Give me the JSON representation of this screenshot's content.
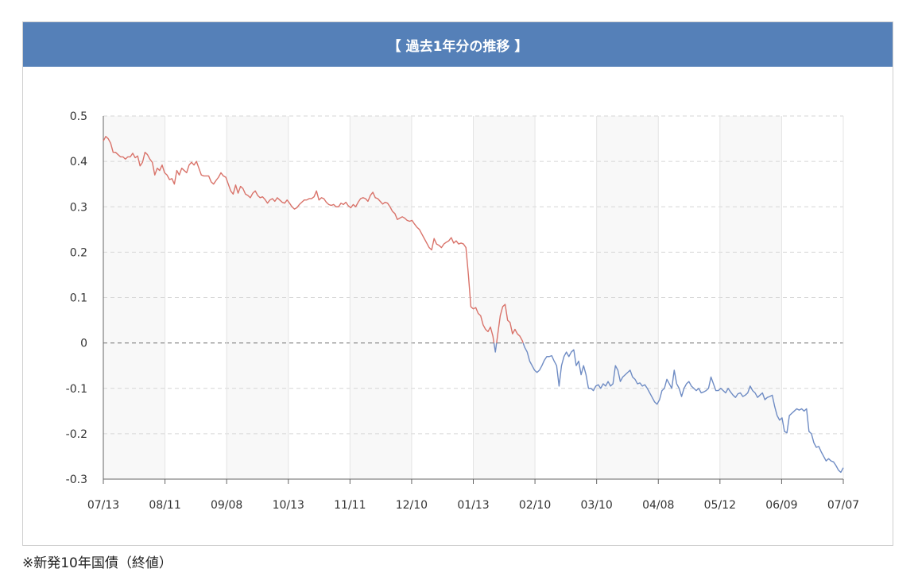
{
  "chart_title": "【 過去1年分の推移 】",
  "footnote": "※新発10年国債（終値）",
  "colors": {
    "header": "#5580b8",
    "positive": "#d9736a",
    "negative": "#6f8cc4",
    "band": "#f8f8f8"
  },
  "chart_data": {
    "type": "line",
    "title": "【 過去1年分の推移 】",
    "xlabel": "",
    "ylabel": "",
    "ylim": [
      -0.3,
      0.5
    ],
    "y_ticks": [
      "0.5",
      "0.4",
      "0.3",
      "0.2",
      "0.1",
      "0",
      "-0.1",
      "-0.2",
      "-0.3"
    ],
    "x_tick_labels": [
      "07/13",
      "08/11",
      "09/08",
      "10/13",
      "11/11",
      "12/10",
      "01/13",
      "02/10",
      "03/10",
      "04/08",
      "05/12",
      "06/09",
      "07/07"
    ],
    "grid": true,
    "zero_line": "dashed",
    "series": [
      {
        "values": [
          0.445,
          0.455,
          0.45,
          0.44,
          0.42,
          0.42,
          0.415,
          0.41,
          0.41,
          0.405,
          0.41,
          0.41,
          0.418,
          0.408,
          0.412,
          0.39,
          0.398,
          0.42,
          0.415,
          0.405,
          0.398,
          0.37,
          0.385,
          0.38,
          0.392,
          0.375,
          0.37,
          0.36,
          0.362,
          0.35,
          0.38,
          0.37,
          0.385,
          0.38,
          0.375,
          0.392,
          0.398,
          0.392,
          0.4,
          0.385,
          0.37,
          0.368,
          0.368,
          0.368,
          0.355,
          0.35,
          0.358,
          0.365,
          0.375,
          0.368,
          0.365,
          0.35,
          0.335,
          0.328,
          0.348,
          0.33,
          0.345,
          0.34,
          0.328,
          0.325,
          0.32,
          0.33,
          0.335,
          0.325,
          0.32,
          0.322,
          0.316,
          0.308,
          0.315,
          0.318,
          0.312,
          0.32,
          0.315,
          0.31,
          0.308,
          0.315,
          0.308,
          0.3,
          0.295,
          0.298,
          0.305,
          0.31,
          0.315,
          0.315,
          0.318,
          0.318,
          0.322,
          0.335,
          0.315,
          0.32,
          0.318,
          0.31,
          0.305,
          0.303,
          0.305,
          0.3,
          0.3,
          0.308,
          0.305,
          0.31,
          0.302,
          0.298,
          0.305,
          0.3,
          0.31,
          0.318,
          0.32,
          0.318,
          0.312,
          0.325,
          0.332,
          0.32,
          0.318,
          0.312,
          0.306,
          0.31,
          0.308,
          0.3,
          0.29,
          0.285,
          0.272,
          0.275,
          0.278,
          0.275,
          0.27,
          0.268,
          0.27,
          0.262,
          0.255,
          0.25,
          0.24,
          0.23,
          0.22,
          0.21,
          0.205,
          0.23,
          0.218,
          0.215,
          0.21,
          0.218,
          0.222,
          0.225,
          0.232,
          0.22,
          0.225,
          0.218,
          0.22,
          0.218,
          0.21,
          0.15,
          0.08,
          0.075,
          0.078,
          0.065,
          0.06,
          0.04,
          0.03,
          0.025,
          0.035,
          0.015,
          -0.02,
          0.02,
          0.06,
          0.08,
          0.085,
          0.05,
          0.045,
          0.02,
          0.03,
          0.02,
          0.015,
          0.005,
          -0.01,
          -0.02,
          -0.04,
          -0.05,
          -0.06,
          -0.065,
          -0.06,
          -0.05,
          -0.038,
          -0.03,
          -0.03,
          -0.028,
          -0.04,
          -0.05,
          -0.095,
          -0.05,
          -0.03,
          -0.02,
          -0.03,
          -0.02,
          -0.015,
          -0.05,
          -0.04,
          -0.07,
          -0.05,
          -0.07,
          -0.1,
          -0.1,
          -0.105,
          -0.095,
          -0.092,
          -0.1,
          -0.09,
          -0.095,
          -0.085,
          -0.095,
          -0.09,
          -0.05,
          -0.06,
          -0.085,
          -0.075,
          -0.07,
          -0.065,
          -0.06,
          -0.075,
          -0.08,
          -0.09,
          -0.088,
          -0.095,
          -0.092,
          -0.1,
          -0.11,
          -0.12,
          -0.13,
          -0.135,
          -0.125,
          -0.105,
          -0.1,
          -0.08,
          -0.09,
          -0.1,
          -0.06,
          -0.09,
          -0.1,
          -0.118,
          -0.1,
          -0.09,
          -0.085,
          -0.095,
          -0.1,
          -0.105,
          -0.1,
          -0.11,
          -0.108,
          -0.105,
          -0.1,
          -0.075,
          -0.09,
          -0.105,
          -0.105,
          -0.1,
          -0.105,
          -0.11,
          -0.1,
          -0.108,
          -0.115,
          -0.12,
          -0.112,
          -0.11,
          -0.118,
          -0.115,
          -0.11,
          -0.095,
          -0.105,
          -0.11,
          -0.12,
          -0.115,
          -0.11,
          -0.125,
          -0.12,
          -0.118,
          -0.115,
          -0.14,
          -0.16,
          -0.17,
          -0.165,
          -0.195,
          -0.198,
          -0.16,
          -0.155,
          -0.15,
          -0.145,
          -0.148,
          -0.145,
          -0.15,
          -0.145,
          -0.195,
          -0.2,
          -0.22,
          -0.23,
          -0.228,
          -0.24,
          -0.25,
          -0.26,
          -0.255,
          -0.26,
          -0.262,
          -0.27,
          -0.28,
          -0.285,
          -0.275
        ]
      }
    ]
  }
}
